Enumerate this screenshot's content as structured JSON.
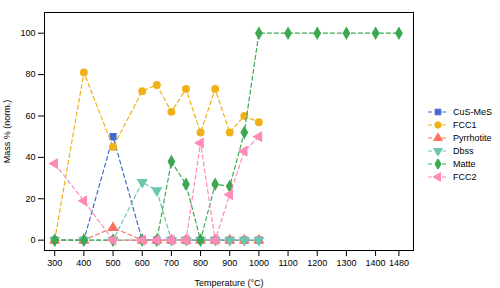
{
  "chart_data": {
    "type": "line",
    "xlabel": "Temperature (°C)",
    "ylabel": "Mass % (norm.)",
    "xlim": [
      265,
      1530
    ],
    "ylim": [
      -5,
      110
    ],
    "xticks": [
      300,
      400,
      500,
      600,
      700,
      800,
      900,
      1000,
      1100,
      1200,
      1300,
      1400,
      1480
    ],
    "yticks": [
      0,
      20,
      40,
      60,
      80,
      100
    ],
    "grid": false,
    "legend": "right",
    "line_style": "dashed",
    "series": [
      {
        "name": "CuS-MeS",
        "marker": "square",
        "x": [
          300,
          400,
          500,
          600,
          650,
          700,
          750,
          800,
          850,
          900,
          950,
          1000
        ],
        "values": [
          0,
          0,
          50,
          0,
          0,
          0,
          0,
          0,
          0,
          0,
          0,
          0
        ]
      },
      {
        "name": "FCC1",
        "marker": "circle",
        "x": [
          300,
          400,
          500,
          600,
          650,
          700,
          750,
          800,
          850,
          900,
          950,
          1000
        ],
        "values": [
          0,
          81,
          45,
          72,
          75,
          62,
          73,
          52,
          73,
          52,
          60,
          57
        ]
      },
      {
        "name": "Pyrrhotite",
        "marker": "triangle",
        "x": [
          300,
          400,
          500,
          600,
          650,
          700,
          750,
          800,
          850,
          900,
          950,
          1000
        ],
        "values": [
          0,
          0,
          6,
          0,
          0,
          0,
          0,
          0,
          0,
          0,
          0,
          0
        ]
      },
      {
        "name": "Dbss",
        "marker": "triangle-down",
        "x": [
          300,
          400,
          500,
          600,
          650,
          700,
          750,
          800,
          850,
          900,
          950,
          1000
        ],
        "values": [
          0,
          0,
          0,
          28,
          24,
          0,
          0,
          0,
          0,
          0,
          0,
          0
        ]
      },
      {
        "name": "Matte",
        "marker": "diamond",
        "x": [
          300,
          400,
          500,
          600,
          650,
          700,
          750,
          800,
          850,
          900,
          950,
          1000,
          1100,
          1200,
          1300,
          1400,
          1480
        ],
        "values": [
          0,
          0,
          0,
          0,
          0,
          38,
          27,
          0,
          27,
          26,
          52,
          100,
          100,
          100,
          100,
          100,
          100
        ]
      },
      {
        "name": "FCC2",
        "marker": "triangle-left",
        "x": [
          300,
          400,
          500,
          600,
          650,
          700,
          750,
          800,
          850,
          900,
          950,
          1000
        ],
        "values": [
          37,
          19,
          0,
          0,
          0,
          0,
          0,
          47,
          0,
          22,
          43,
          50
        ]
      }
    ]
  }
}
